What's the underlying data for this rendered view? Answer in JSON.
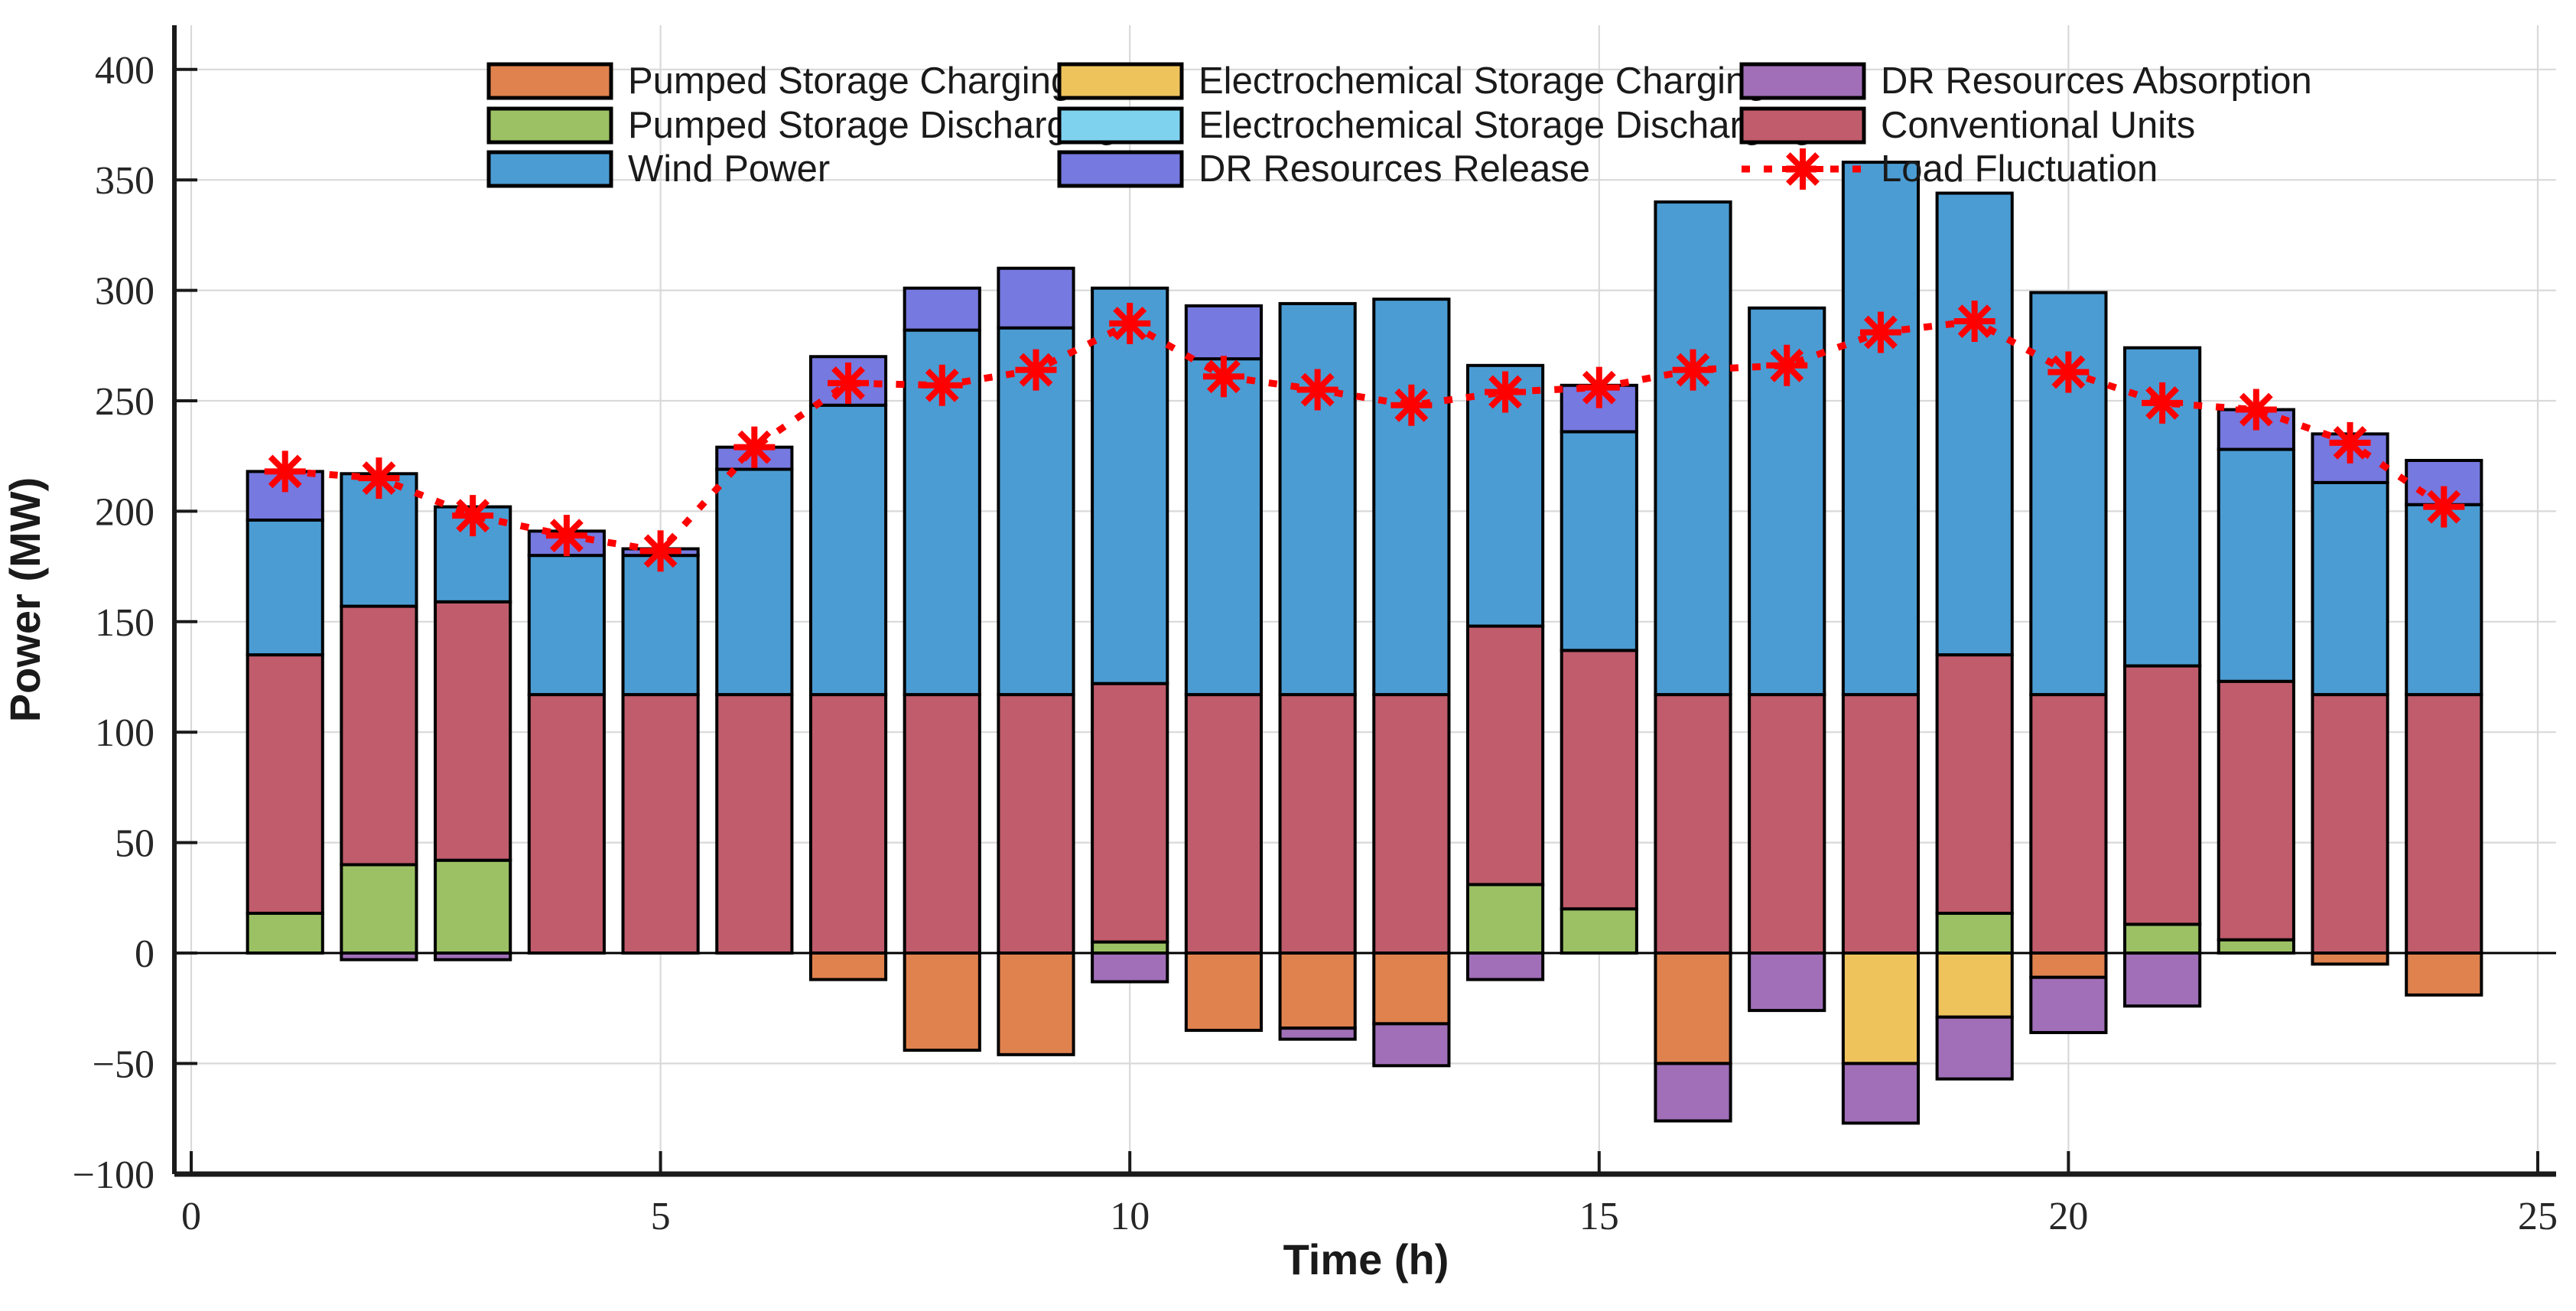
{
  "axes": {
    "x_label": "Time (h)",
    "y_label": "Power (MW)",
    "x_ticks": [
      0,
      5,
      10,
      15,
      20,
      25
    ],
    "y_ticks": [
      -100,
      -50,
      0,
      50,
      100,
      150,
      200,
      250,
      300,
      350,
      400
    ],
    "minus_glyph": "−",
    "grid_color": "#d9d9d9",
    "spine_color": "#1a1a1a",
    "zero_line_color": "#000000"
  },
  "legend": {
    "columns": 3,
    "items": [
      {
        "label": "Pumped Storage Charging",
        "color": "#E0824E",
        "kind": "swatch"
      },
      {
        "label": "Pumped Storage Discharging",
        "color": "#9BC164",
        "kind": "swatch"
      },
      {
        "label": "Wind Power",
        "color": "#4B9CD3",
        "kind": "swatch"
      },
      {
        "label": "Electrochemical Storage Charging",
        "color": "#EFC35C",
        "kind": "swatch"
      },
      {
        "label": "Electrochemical Storage Discharging",
        "color": "#7FD2EE",
        "kind": "swatch"
      },
      {
        "label": "DR Resources Release",
        "color": "#7679DF",
        "kind": "swatch"
      },
      {
        "label": "DR Resources Absorption",
        "color": "#A06FB8",
        "kind": "swatch"
      },
      {
        "label": "Conventional Units",
        "color": "#C05C6B",
        "kind": "swatch"
      },
      {
        "label": "Load Fluctuation",
        "color": "#FF0000",
        "kind": "line"
      }
    ]
  },
  "chart_data": {
    "type": "bar",
    "stacked": true,
    "title": "",
    "xlabel": "Time (h)",
    "ylabel": "Power (MW)",
    "xlim": [
      -0.18,
      25.2
    ],
    "ylim": [
      -100,
      420
    ],
    "grid": true,
    "x": [
      1,
      2,
      3,
      4,
      5,
      6,
      7,
      8,
      9,
      10,
      11,
      12,
      13,
      14,
      15,
      16,
      17,
      18,
      19,
      20,
      21,
      22,
      23,
      24
    ],
    "bar_width_fraction": 0.8,
    "edge_color": "#000000",
    "series": [
      {
        "name": "Pumped Storage Discharging",
        "color": "#9BC164",
        "values": [
          18,
          40,
          42,
          0,
          0,
          0,
          0,
          0,
          0,
          5,
          0,
          0,
          0,
          31,
          20,
          0,
          0,
          0,
          18,
          0,
          13,
          6,
          0,
          0
        ]
      },
      {
        "name": "Conventional Units",
        "color": "#C05C6B",
        "values": [
          117,
          117,
          117,
          117,
          117,
          117,
          117,
          117,
          117,
          117,
          117,
          117,
          117,
          117,
          117,
          117,
          117,
          117,
          117,
          117,
          117,
          117,
          117,
          117
        ]
      },
      {
        "name": "Wind Power",
        "color": "#4B9CD3",
        "values": [
          61,
          60,
          43,
          63,
          63,
          102,
          131,
          165,
          166,
          179,
          152,
          177,
          179,
          118,
          99,
          223,
          175,
          241,
          209,
          182,
          144,
          105,
          96,
          86
        ]
      },
      {
        "name": "Electrochemical Storage Discharging",
        "color": "#7FD2EE",
        "values": [
          0,
          0,
          0,
          0,
          0,
          0,
          0,
          0,
          0,
          0,
          0,
          0,
          0,
          0,
          0,
          0,
          0,
          0,
          0,
          0,
          0,
          0,
          0,
          0
        ]
      },
      {
        "name": "DR Resources Release",
        "color": "#7679DF",
        "values": [
          22,
          0,
          0,
          11,
          3,
          10,
          22,
          19,
          27,
          0,
          24,
          0,
          0,
          0,
          21,
          0,
          0,
          0,
          0,
          0,
          0,
          18,
          22,
          20
        ]
      },
      {
        "name": "Pumped Storage Charging",
        "color": "#E0824E",
        "values": [
          0,
          0,
          0,
          0,
          0,
          0,
          -12,
          -44,
          -46,
          0,
          -35,
          -34,
          -32,
          0,
          0,
          -50,
          0,
          0,
          0,
          -11,
          0,
          0,
          -5,
          -19
        ]
      },
      {
        "name": "Electrochemical Storage Charging",
        "color": "#EFC35C",
        "values": [
          0,
          0,
          0,
          0,
          0,
          0,
          0,
          0,
          0,
          0,
          0,
          0,
          0,
          0,
          0,
          0,
          0,
          -50,
          -29,
          0,
          0,
          0,
          0,
          0
        ]
      },
      {
        "name": "DR Resources Absorption",
        "color": "#A06FB8",
        "values": [
          0,
          -3,
          -3,
          0,
          0,
          0,
          0,
          0,
          0,
          -13,
          0,
          -5,
          -19,
          -12,
          0,
          -26,
          -26,
          -27,
          -28,
          -25,
          -24,
          0,
          0,
          0
        ]
      }
    ],
    "line_series": {
      "name": "Load Fluctuation",
      "color": "#FF0000",
      "style": "dotted",
      "marker": "asterisk",
      "values": [
        218,
        215,
        198,
        189,
        182,
        229,
        258,
        257,
        264,
        285,
        261,
        255,
        248,
        254,
        256,
        264,
        266,
        281,
        286,
        263,
        249,
        246,
        231,
        202
      ]
    },
    "legend_position": "top-inside"
  }
}
